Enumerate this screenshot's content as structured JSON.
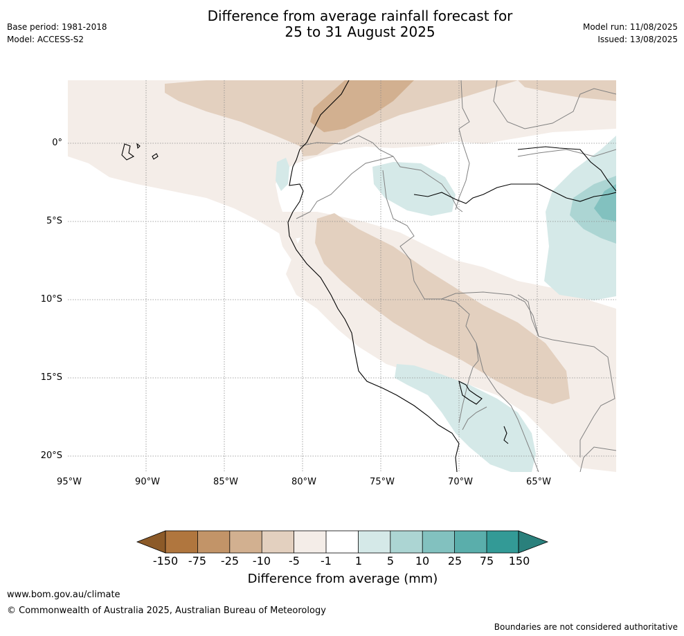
{
  "header": {
    "base_period": "Base period: 1981-2018",
    "model": "Model: ACCESS-S2",
    "title_line1": "Difference from average rainfall forecast for",
    "title_line2": "25 to 31 August 2025",
    "model_run": "Model run: 11/08/2025",
    "issued": "Issued: 13/08/2025"
  },
  "map": {
    "latitude_labels": [
      "0°",
      "5°S",
      "10°S",
      "15°S",
      "20°S"
    ],
    "longitude_labels": [
      "95°W",
      "90°W",
      "85°W",
      "80°W",
      "75°W",
      "70°W",
      "65°W"
    ],
    "land_color": "#ffffff",
    "coast_color": "#000000",
    "border_color": "#808080"
  },
  "colorbar": {
    "title": "Difference from average (mm)",
    "ticks": [
      "-150",
      "-75",
      "-25",
      "-10",
      "-5",
      "-1",
      "1",
      "5",
      "10",
      "25",
      "75",
      "150"
    ],
    "colors": [
      "#8c5a28",
      "#b0763e",
      "#c29468",
      "#d2b090",
      "#e3d0bf",
      "#f4ede8",
      "#ffffff",
      "#d5e9e8",
      "#acd5d3",
      "#82c1bf",
      "#5aaeab",
      "#339a96",
      "#2a807c"
    ]
  },
  "footer": {
    "website": "www.bom.gov.au/climate",
    "copyright": "© Commonwealth of Australia 2025, Australian Bureau of Meteorology",
    "disclaimer": "Boundaries are not considered authoritative"
  }
}
